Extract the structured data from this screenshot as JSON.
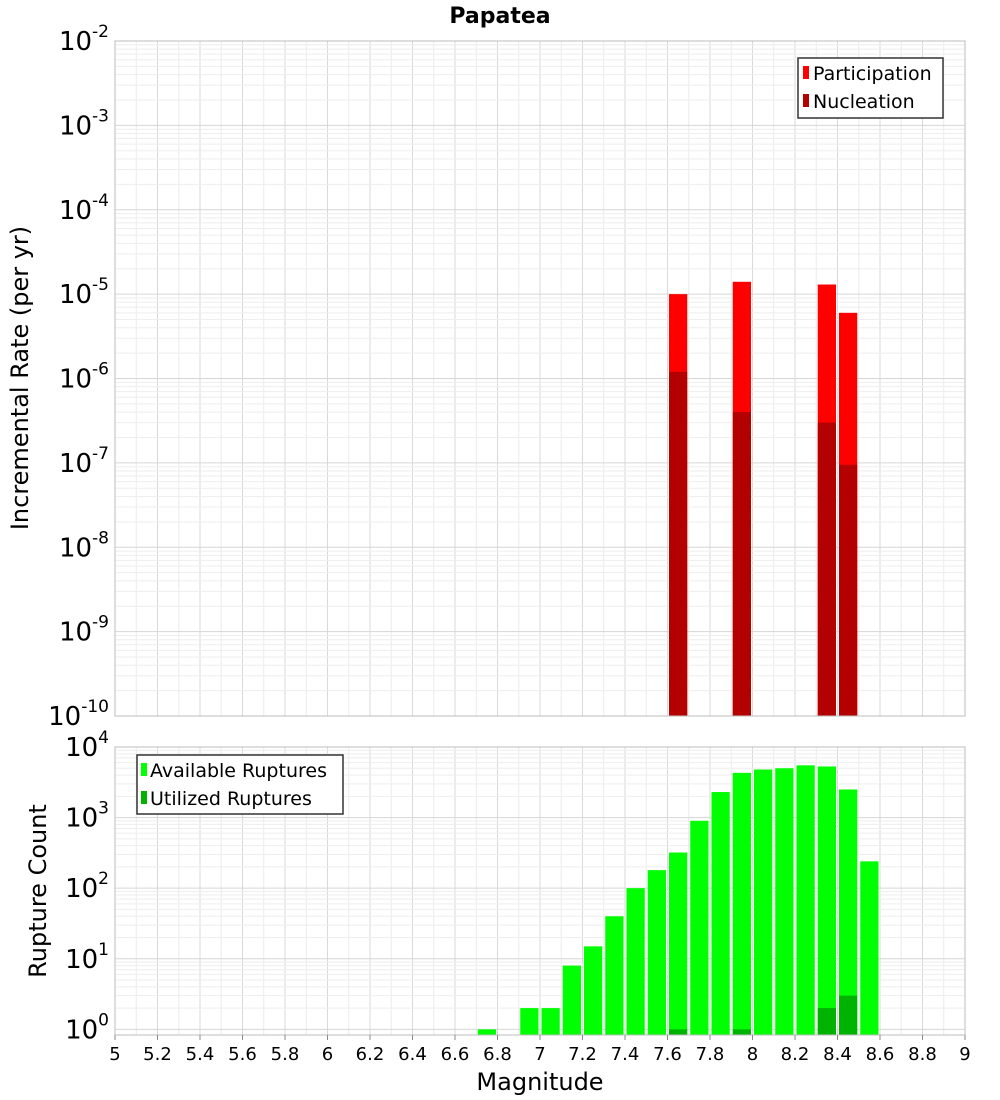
{
  "chart_data": [
    {
      "type": "bar",
      "title": "Papatea",
      "ylabel": "Incremental Rate (per yr)",
      "yscale": "log",
      "ylim_exponents": [
        -10,
        -2
      ],
      "xlim": [
        5,
        9
      ],
      "bin_width": 0.1,
      "colors": {
        "Participation": "#ff0000",
        "Nucleation": "#b30000"
      },
      "series": [
        {
          "name": "Participation",
          "x": [
            7.65,
            7.95,
            8.35,
            8.45
          ],
          "values": [
            1e-05,
            1.4e-05,
            1.3e-05,
            6e-06
          ]
        },
        {
          "name": "Nucleation",
          "x": [
            7.65,
            7.95,
            8.35,
            8.45
          ],
          "values": [
            1.2e-06,
            4e-07,
            3e-07,
            9.5e-08
          ]
        }
      ],
      "legend": {
        "position": "top-right",
        "entries": [
          "Participation",
          "Nucleation"
        ]
      }
    },
    {
      "type": "bar",
      "xlabel": "Magnitude",
      "ylabel": "Rupture Count",
      "yscale": "log",
      "ylim_exponents": [
        0,
        4
      ],
      "xlim": [
        5,
        9
      ],
      "bin_width": 0.1,
      "xticks": [
        "5",
        "5.2",
        "5.4",
        "5.6",
        "5.8",
        "6",
        "6.2",
        "6.4",
        "6.6",
        "6.8",
        "7",
        "7.2",
        "7.4",
        "7.6",
        "7.8",
        "8",
        "8.2",
        "8.4",
        "8.6",
        "8.8",
        "9"
      ],
      "colors": {
        "Available Ruptures": "#00ff00",
        "Utilized Ruptures": "#00b300"
      },
      "series": [
        {
          "name": "Available Ruptures",
          "x": [
            6.75,
            6.95,
            7.05,
            7.15,
            7.25,
            7.35,
            7.45,
            7.55,
            7.65,
            7.75,
            7.85,
            7.95,
            8.05,
            8.15,
            8.25,
            8.35,
            8.45,
            8.55
          ],
          "values": [
            1,
            2,
            2,
            8,
            15,
            40,
            100,
            180,
            320,
            900,
            2300,
            4300,
            4800,
            5000,
            5500,
            5300,
            2500,
            240
          ]
        },
        {
          "name": "Utilized Ruptures",
          "x": [
            7.65,
            7.95,
            8.35,
            8.45
          ],
          "values": [
            1,
            1,
            2,
            3
          ]
        }
      ],
      "legend": {
        "position": "top-left",
        "entries": [
          "Available Ruptures",
          "Utilized Ruptures"
        ]
      }
    }
  ]
}
